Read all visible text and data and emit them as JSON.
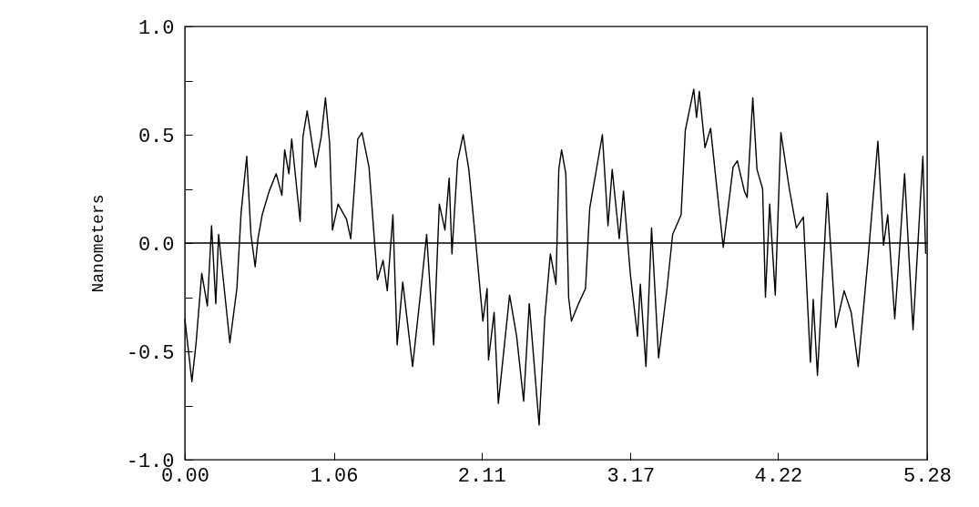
{
  "chart_data": {
    "type": "line",
    "ylabel": "Nanometers",
    "xlim": [
      0,
      5.28
    ],
    "ylim": [
      -1,
      1
    ],
    "xticks": [
      {
        "value": 0,
        "label": "0.00"
      },
      1.06,
      2.11,
      3.17,
      4.22,
      5.28
    ],
    "yticks": [
      {
        "value": -1,
        "label": "-1.0"
      },
      {
        "value": -0.75,
        "label": null
      },
      {
        "value": -0.5,
        "label": "-0.5"
      },
      {
        "value": -0.25,
        "label": null
      },
      {
        "value": 0,
        "label": "0.0"
      },
      {
        "value": 0.25,
        "label": null
      },
      {
        "value": 0.5,
        "label": "0.5"
      },
      {
        "value": 0.75,
        "label": null
      },
      {
        "value": 1,
        "label": "1.0"
      }
    ],
    "grid": false,
    "line_style": "solid",
    "marker": "none",
    "ref_lines": [
      {
        "axis": "y",
        "value": 0,
        "color": "#000000"
      }
    ],
    "series": [
      {
        "color": "#000000",
        "x": [
          0.0,
          0.05,
          0.08,
          0.12,
          0.16,
          0.19,
          0.22,
          0.24,
          0.32,
          0.37,
          0.4,
          0.44,
          0.47,
          0.5,
          0.52,
          0.55,
          0.6,
          0.65,
          0.69,
          0.71,
          0.74,
          0.76,
          0.82,
          0.84,
          0.87,
          0.93,
          0.97,
          1.0,
          1.03,
          1.05,
          1.09,
          1.15,
          1.18,
          1.23,
          1.26,
          1.31,
          1.35,
          1.37,
          1.41,
          1.44,
          1.48,
          1.51,
          1.55,
          1.62,
          1.68,
          1.72,
          1.77,
          1.81,
          1.85,
          1.88,
          1.9,
          1.94,
          1.98,
          2.02,
          2.07,
          2.12,
          2.15,
          2.16,
          2.2,
          2.23,
          2.31,
          2.36,
          2.41,
          2.45,
          2.52,
          2.56,
          2.6,
          2.64,
          2.66,
          2.68,
          2.71,
          2.73,
          2.75,
          2.8,
          2.85,
          2.88,
          2.97,
          3.01,
          3.04,
          3.09,
          3.12,
          3.17,
          3.22,
          3.24,
          3.28,
          3.32,
          3.37,
          3.43,
          3.47,
          3.53,
          3.56,
          3.62,
          3.64,
          3.66,
          3.7,
          3.74,
          3.78,
          3.83,
          3.9,
          3.93,
          3.98,
          4.0,
          4.04,
          4.07,
          4.11,
          4.13,
          4.16,
          4.2,
          4.24,
          4.3,
          4.35,
          4.4,
          4.45,
          4.47,
          4.5,
          4.57,
          4.63,
          4.69,
          4.74,
          4.79,
          4.86,
          4.93,
          4.97,
          5.0,
          5.05,
          5.08,
          5.12,
          5.15,
          5.18,
          5.25,
          5.27
        ],
        "values": [
          -0.35,
          -0.64,
          -0.46,
          -0.14,
          -0.29,
          0.08,
          -0.28,
          0.04,
          -0.46,
          -0.21,
          0.14,
          0.4,
          0.04,
          -0.11,
          0.02,
          0.13,
          0.24,
          0.32,
          0.22,
          0.43,
          0.32,
          0.48,
          0.1,
          0.49,
          0.61,
          0.35,
          0.49,
          0.67,
          0.46,
          0.06,
          0.18,
          0.11,
          0.02,
          0.48,
          0.51,
          0.35,
          0,
          -0.17,
          -0.08,
          -0.22,
          0.13,
          -0.47,
          -0.18,
          -0.57,
          -0.21,
          0.04,
          -0.47,
          0.18,
          0.06,
          0.3,
          -0.05,
          0.38,
          0.5,
          0.34,
          0,
          -0.36,
          -0.21,
          -0.54,
          -0.32,
          -0.74,
          -0.24,
          -0.43,
          -0.73,
          -0.28,
          -0.84,
          -0.35,
          -0.05,
          -0.19,
          0.34,
          0.43,
          0.32,
          -0.25,
          -0.36,
          -0.28,
          -0.21,
          0.16,
          0.5,
          0.08,
          0.34,
          0.02,
          0.24,
          -0.15,
          -0.43,
          -0.19,
          -0.57,
          0.07,
          -0.53,
          -0.21,
          0.04,
          0.13,
          0.52,
          0.71,
          0.58,
          0.7,
          0.44,
          0.53,
          0.28,
          -0.02,
          0.35,
          0.38,
          0.24,
          0.21,
          0.67,
          0.34,
          0.25,
          -0.25,
          0.18,
          -0.24,
          0.51,
          0.25,
          0.07,
          0.12,
          -0.55,
          -0.26,
          -0.61,
          0.23,
          -0.39,
          -0.22,
          -0.32,
          -0.57,
          -0.07,
          0.47,
          -0.01,
          0.13,
          -0.35,
          -0.07,
          0.32,
          -0.05,
          -0.4,
          0.4,
          -0.05
        ]
      }
    ]
  }
}
